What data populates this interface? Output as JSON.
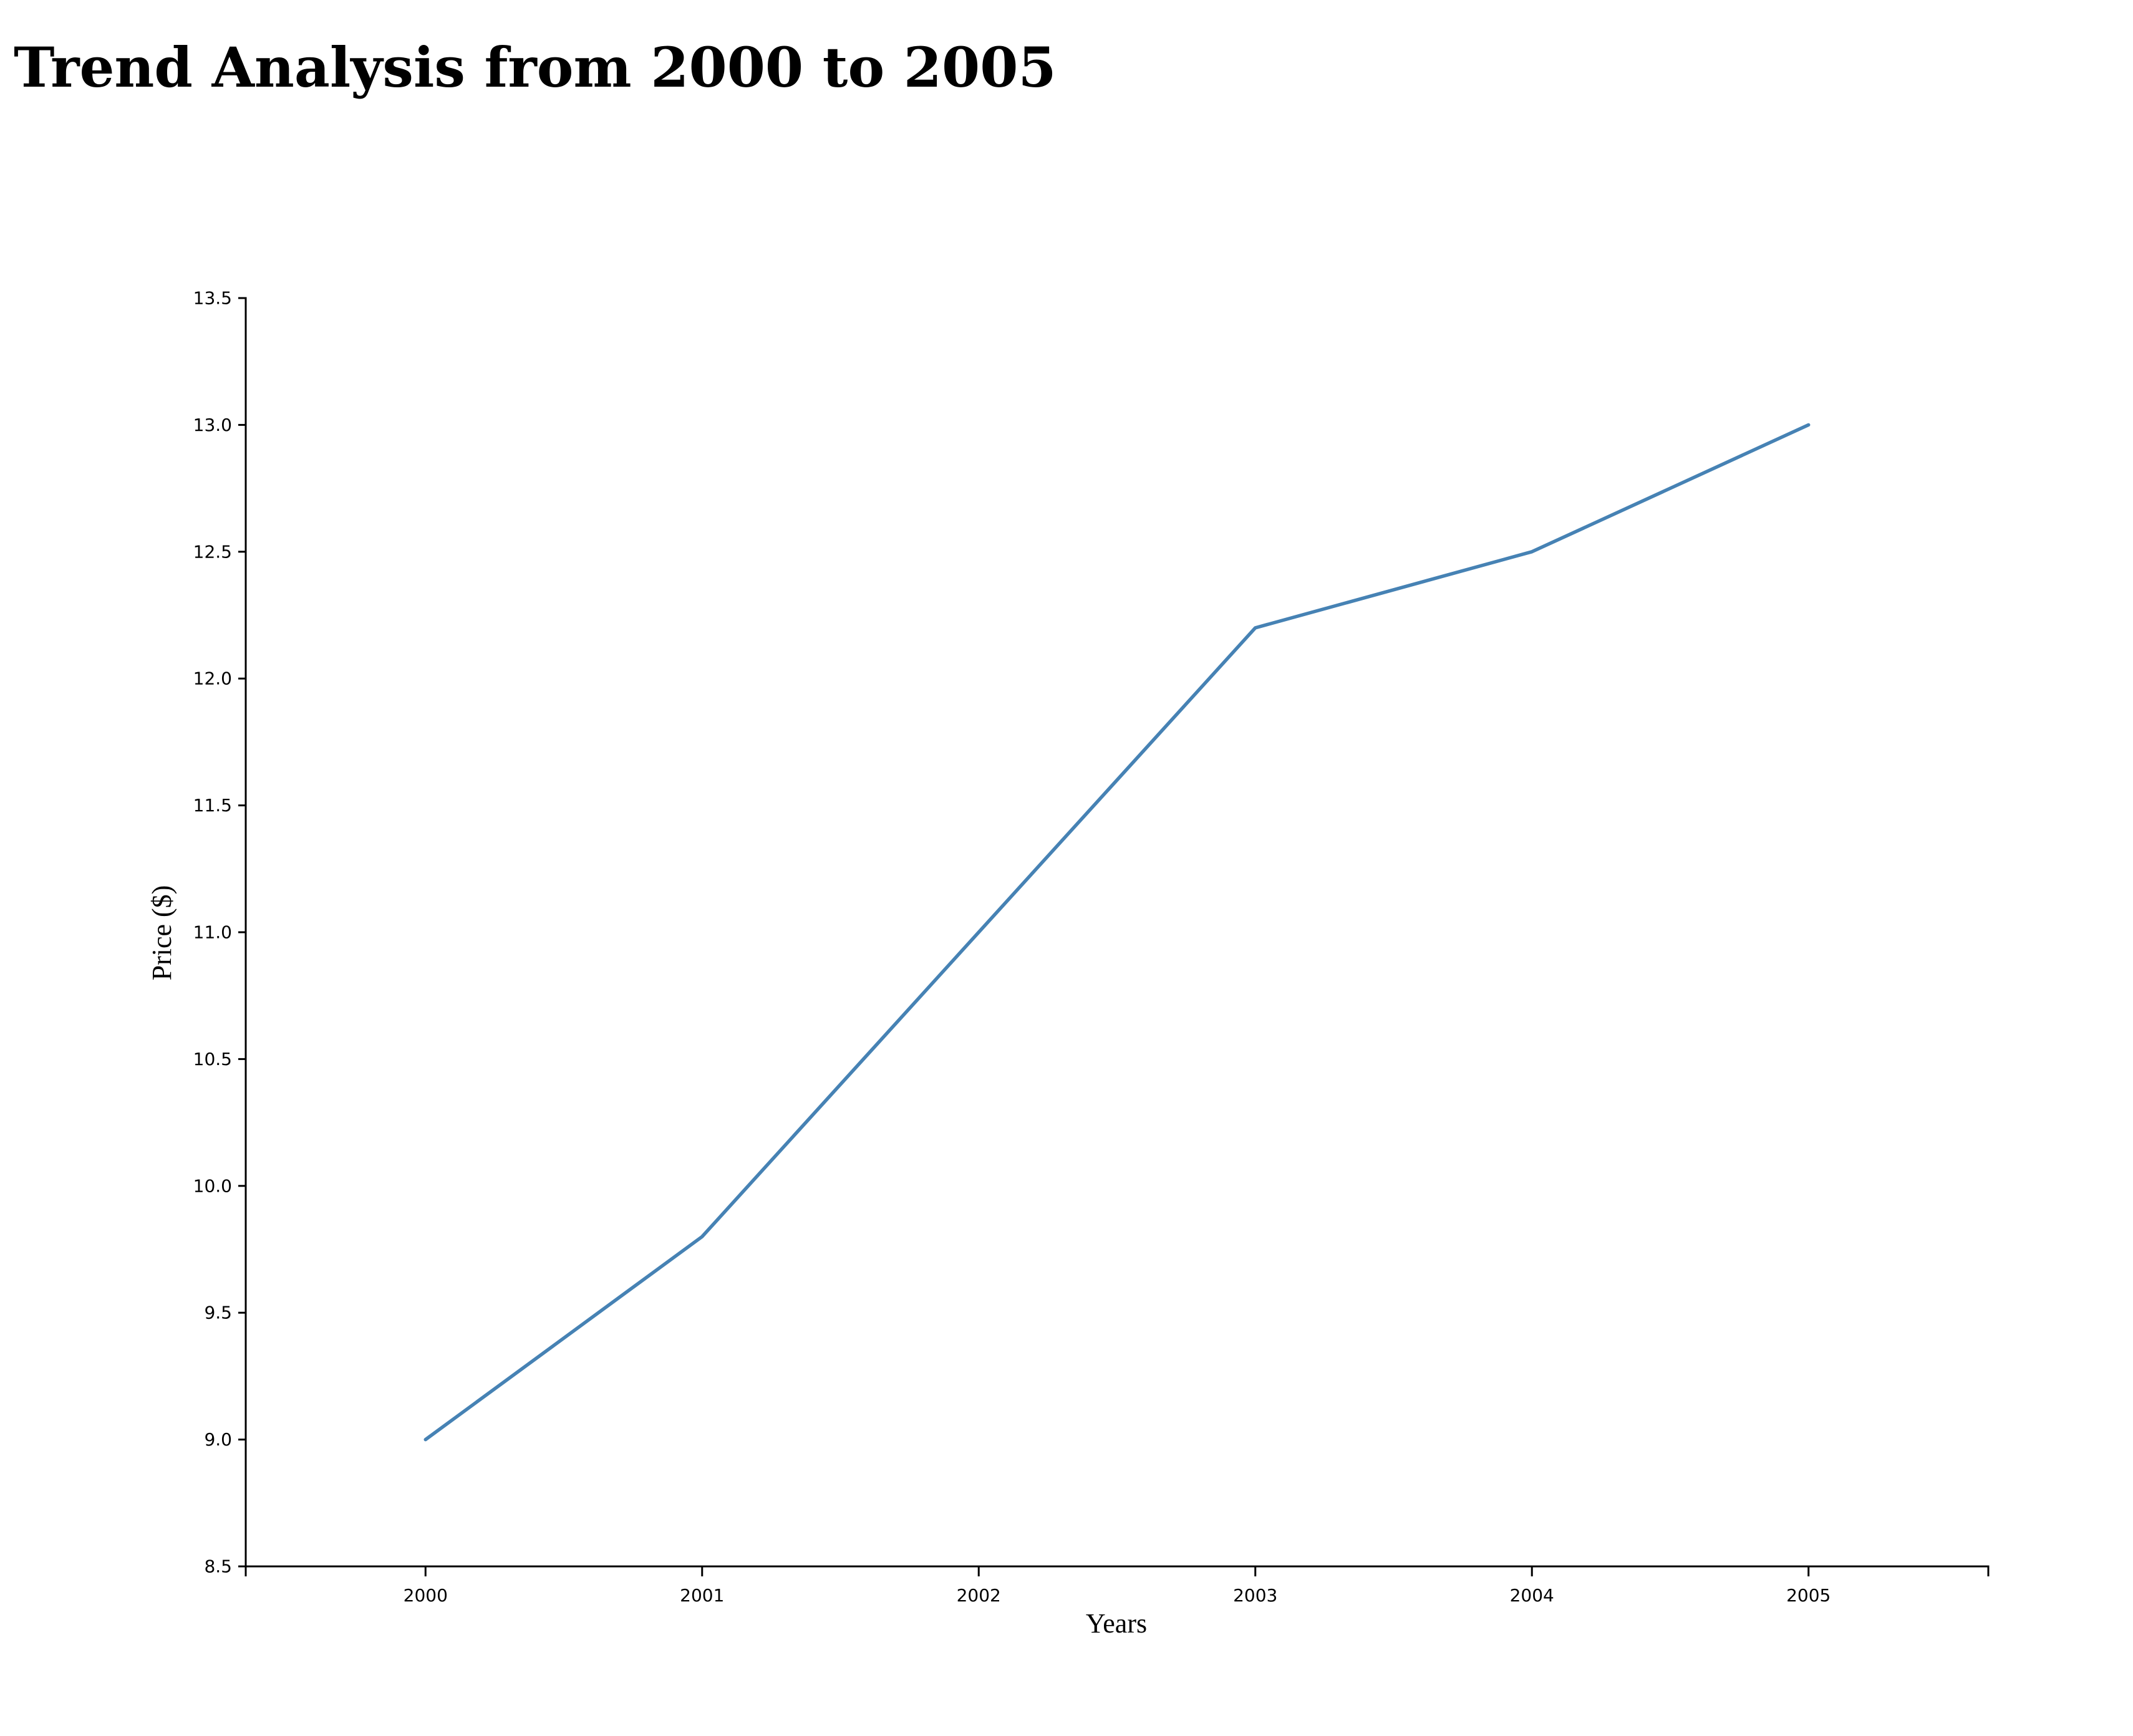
{
  "title": "Trend Analysis from 2000 to 2005",
  "chart_data": {
    "type": "line",
    "title": "Trend Analysis from 2000 to 2005",
    "xlabel": "Years",
    "ylabel": "Price ($)",
    "x": [
      2000,
      2001,
      2002,
      2003,
      2004,
      2005
    ],
    "x_tick_labels": [
      "2000",
      "2001",
      "2002",
      "2003",
      "2004",
      "2005"
    ],
    "xlim": [
      1999.35,
      2005.65
    ],
    "ylim": [
      8.5,
      13.5
    ],
    "y_ticks": [
      8.5,
      9.0,
      9.5,
      10.0,
      10.5,
      11.0,
      11.5,
      12.0,
      12.5,
      13.0,
      13.5
    ],
    "y_tick_labels": [
      "8.5",
      "9.0",
      "9.5",
      "10.0",
      "10.5",
      "11.0",
      "11.5",
      "12.0",
      "12.5",
      "13.0",
      "13.5"
    ],
    "grid": false,
    "legend": "none",
    "series": [
      {
        "values": [
          9.0,
          9.8,
          11.0,
          12.2,
          12.5,
          13.0
        ],
        "color": "#4682b4"
      }
    ]
  }
}
